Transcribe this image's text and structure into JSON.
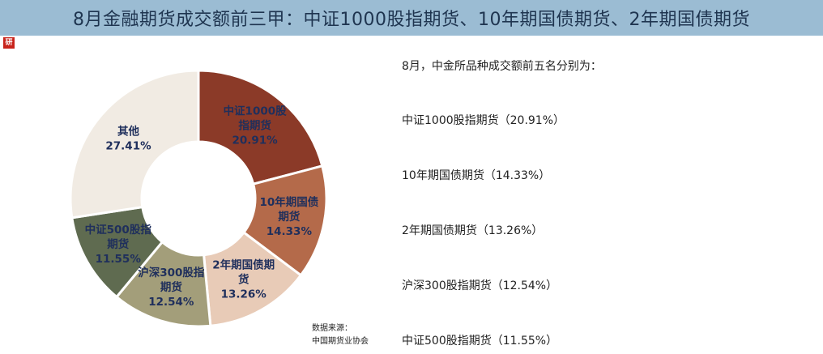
{
  "title": "8月金融期货成交额前三甲：中证1000股指期货、10年期国债期货、2年期国债期货",
  "logo_text": "研",
  "source": {
    "line1": "数据来源：",
    "line2": "中国期货业协会"
  },
  "side": {
    "heading": "8月，中金所品种成交额前五名分别为：",
    "items": [
      "中证1000股指期货（20.91%）",
      "10年期国债期货（14.33%）",
      "2年期国债期货（13.26%）",
      "沪深300股指期货（12.54%）",
      "中证500股指期货（11.55%）"
    ]
  },
  "chart_data": {
    "type": "pie",
    "donut": true,
    "slices": [
      {
        "label_lines": [
          "中证1000股",
          "指期货"
        ],
        "value": 20.91,
        "value_text": "20.91%",
        "color": "#8b3a28"
      },
      {
        "label_lines": [
          "10年期国债",
          "期货"
        ],
        "value": 14.33,
        "value_text": "14.33%",
        "color": "#b46a4a"
      },
      {
        "label_lines": [
          "2年期国债期",
          "货"
        ],
        "value": 13.26,
        "value_text": "13.26%",
        "color": "#e8cbb7"
      },
      {
        "label_lines": [
          "沪深300股指",
          "期货"
        ],
        "value": 12.54,
        "value_text": "12.54%",
        "color": "#a39e7a"
      },
      {
        "label_lines": [
          "中证500股指",
          "期货"
        ],
        "value": 11.55,
        "value_text": "11.55%",
        "color": "#5f6b50"
      },
      {
        "label_lines": [
          "其他"
        ],
        "value": 27.41,
        "value_text": "27.41%",
        "color": "#f1ebe3"
      }
    ]
  }
}
